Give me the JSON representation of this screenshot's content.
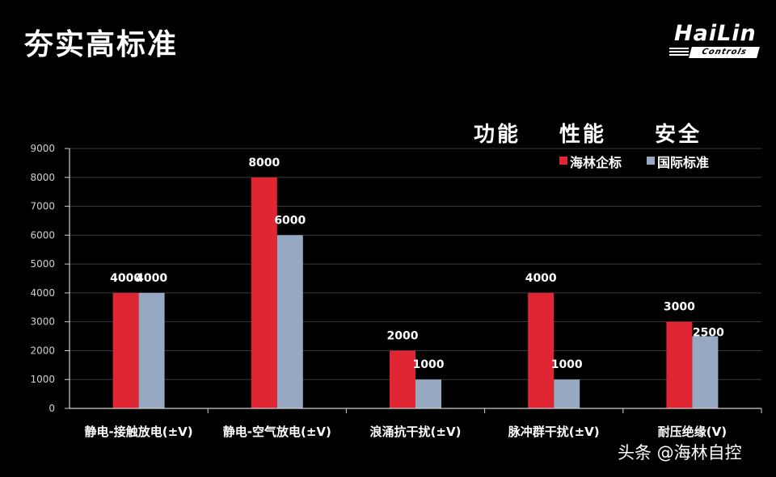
{
  "header": {
    "title": "夯实高标准",
    "logo_main": "HaiLin",
    "logo_sub": "Controls"
  },
  "motto": [
    "功能",
    "性能",
    "安全"
  ],
  "watermark": "头条 @海林自控",
  "colors": {
    "series_1": "#e02533",
    "series_2": "#97a9c2",
    "axis": "#cfcfcf"
  },
  "chart_data": {
    "type": "bar",
    "title": "",
    "xlabel": "",
    "ylabel": "",
    "categories": [
      "静电-接触放电(±V)",
      "静电-空气放电(±V)",
      "浪涌抗干扰(±V)",
      "脉冲群干扰(±V)",
      "耐压绝缘(V)"
    ],
    "series": [
      {
        "name": "海林企标",
        "values": [
          4000,
          8000,
          2000,
          4000,
          3000
        ]
      },
      {
        "name": "国际标准",
        "values": [
          4000,
          6000,
          1000,
          1000,
          2500
        ]
      }
    ],
    "ylim": [
      0,
      9000
    ],
    "yticks": [
      0,
      1000,
      2000,
      3000,
      4000,
      5000,
      6000,
      7000,
      8000,
      9000
    ],
    "grid": true,
    "legend": "top-right"
  }
}
